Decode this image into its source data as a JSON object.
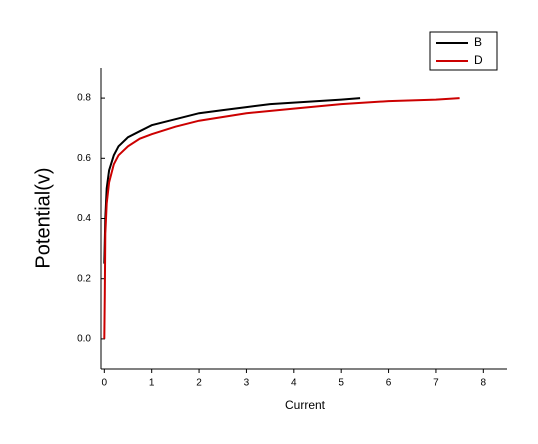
{
  "chart_data": {
    "type": "line",
    "xlabel": "Current",
    "ylabel": "Potential(v)",
    "xlim": [
      -0.07,
      8.5
    ],
    "ylim": [
      -0.1,
      0.9
    ],
    "xticks": [
      0,
      1,
      2,
      3,
      4,
      5,
      6,
      7,
      8
    ],
    "yticks": [
      {
        "value": 0,
        "label": "0.0"
      },
      0.2,
      0.4,
      0.6,
      0.8
    ],
    "legend": "top-right",
    "series": [
      {
        "name": "B",
        "color": "#000000",
        "x": [
          0,
          0.02,
          0.05,
          0.1,
          0.2,
          0.3,
          0.5,
          0.75,
          1,
          1.5,
          2,
          2.5,
          3,
          3.5,
          4,
          4.5,
          5,
          5.4
        ],
        "values": [
          0.25,
          0.4,
          0.5,
          0.56,
          0.61,
          0.64,
          0.67,
          0.69,
          0.71,
          0.73,
          0.75,
          0.76,
          0.77,
          0.78,
          0.785,
          0.79,
          0.795,
          0.8
        ]
      },
      {
        "name": "D",
        "color": "#cc0000",
        "x": [
          0,
          0.01,
          0.02,
          0.05,
          0.1,
          0.2,
          0.3,
          0.5,
          0.75,
          1,
          1.5,
          2,
          3,
          4,
          5,
          6,
          7,
          7.5
        ],
        "values": [
          0,
          0.15,
          0.35,
          0.45,
          0.52,
          0.58,
          0.61,
          0.64,
          0.665,
          0.68,
          0.705,
          0.725,
          0.75,
          0.765,
          0.78,
          0.79,
          0.795,
          0.8
        ]
      }
    ]
  }
}
